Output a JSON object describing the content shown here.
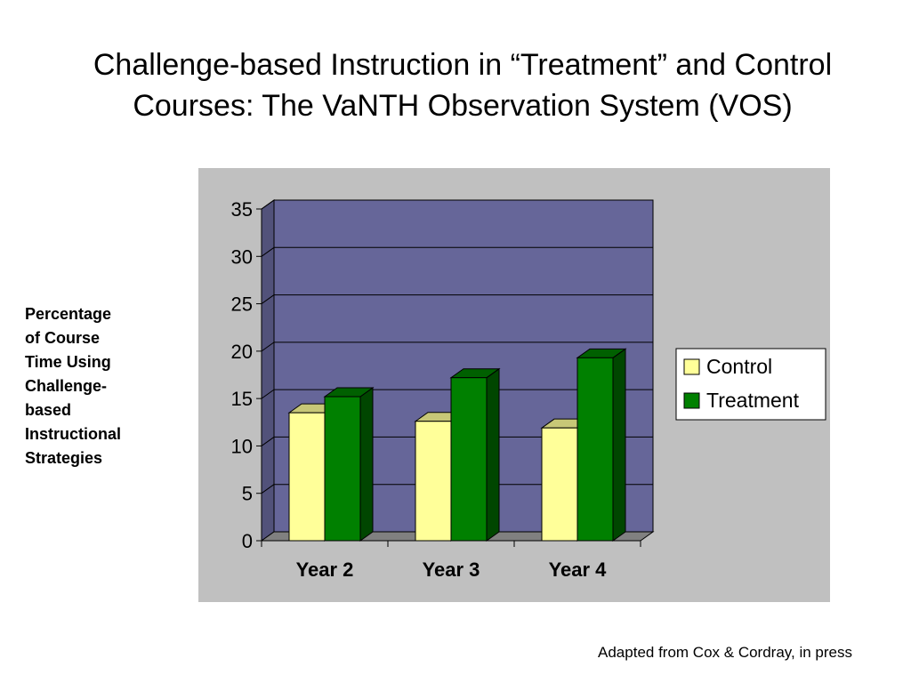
{
  "slide": {
    "title_lines": [
      "Challenge-based Instruction in “Treatment” and Control",
      "Courses: The VaNTH Observation System (VOS)"
    ],
    "source_note": "Adapted from Cox & Cordray, in press"
  },
  "chart_data": {
    "type": "bar",
    "style": "3d-clustered-column",
    "categories": [
      "Year 2",
      "Year 3",
      "Year 4"
    ],
    "series": [
      {
        "name": "Control",
        "values": [
          13.5,
          12.6,
          11.9
        ],
        "color": "#ffff99"
      },
      {
        "name": "Treatment",
        "values": [
          15.2,
          17.2,
          19.3
        ],
        "color": "#008000"
      }
    ],
    "ylabel_lines": [
      "Percentage",
      "of Course",
      "Time Using",
      "Challenge-",
      "based",
      "Instructional",
      "Strategies"
    ],
    "ylim": [
      0,
      35
    ],
    "yticks": [
      0,
      5,
      10,
      15,
      20,
      25,
      30,
      35
    ],
    "grid": true,
    "legend": "right",
    "colors": {
      "chart_area": "#c0c0c0",
      "plot_area": "#666699",
      "floor": "#808080"
    }
  }
}
